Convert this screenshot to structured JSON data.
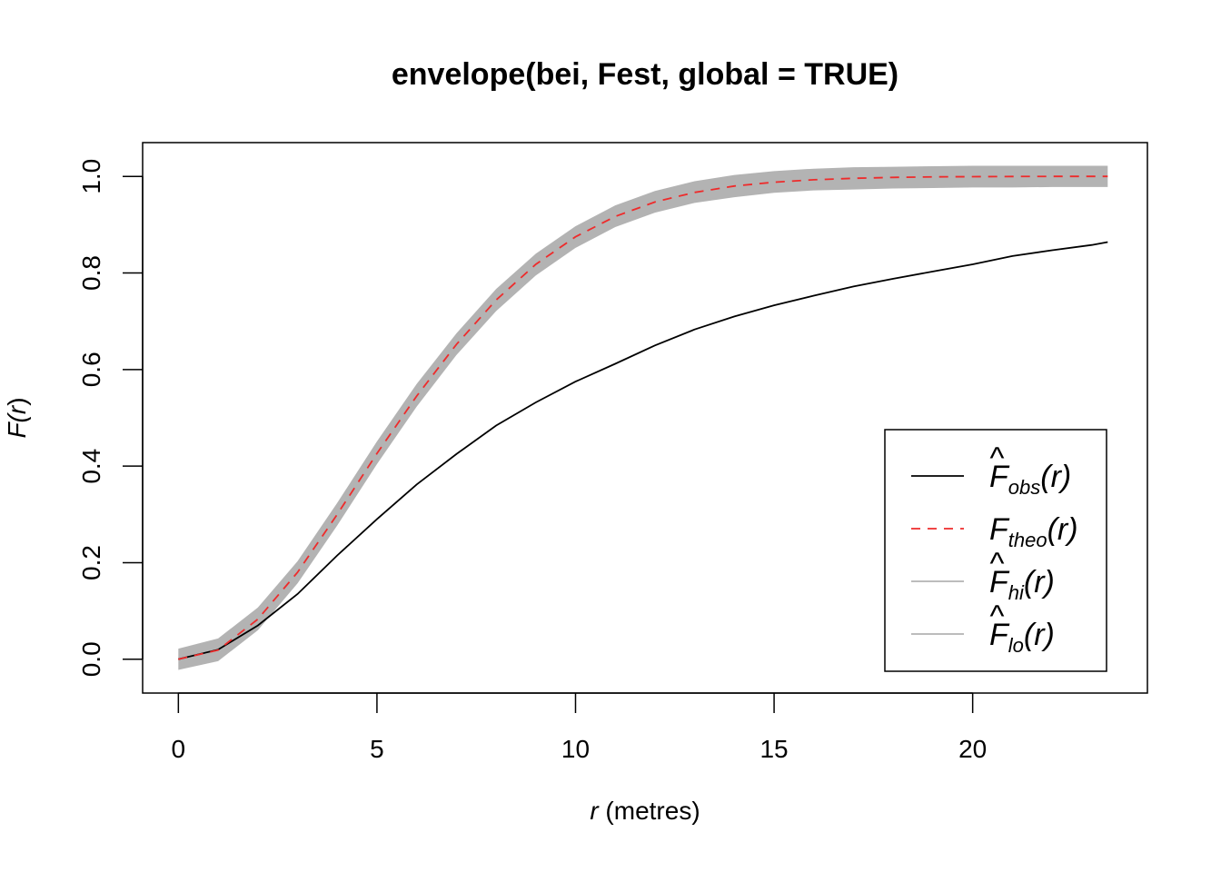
{
  "chart_data": {
    "type": "line",
    "title": "envelope(bei, Fest, global = TRUE)",
    "xlabel": {
      "italic": "r",
      "rest": " (metres)"
    },
    "ylabel": {
      "prefix": "F(",
      "italic": "r",
      "suffix": ")"
    },
    "xlim": [
      -0.9,
      24.4
    ],
    "ylim": [
      -0.07,
      1.07
    ],
    "x_ticks": [
      "0",
      "5",
      "10",
      "15",
      "20"
    ],
    "x_tick_values": [
      0,
      5,
      10,
      15,
      20
    ],
    "y_ticks": [
      "0.0",
      "0.2",
      "0.4",
      "0.6",
      "0.8",
      "1.0"
    ],
    "y_tick_values": [
      0,
      0.2,
      0.4,
      0.6,
      0.8,
      1.0
    ],
    "x": [
      0,
      1,
      2,
      3,
      4,
      5,
      6,
      7,
      8,
      9,
      10,
      11,
      12,
      13,
      14,
      15,
      16,
      17,
      18,
      19,
      20,
      21,
      22,
      23,
      23.4
    ],
    "series": [
      {
        "key": "obs",
        "legend": {
          "prefix": "F",
          "hat": "^",
          "sub": "obs",
          "suffix": "(r)"
        },
        "color": "#000000",
        "style": "solid",
        "values": [
          0.0,
          0.02,
          0.07,
          0.135,
          0.215,
          0.29,
          0.362,
          0.425,
          0.484,
          0.532,
          0.575,
          0.612,
          0.65,
          0.683,
          0.71,
          0.733,
          0.753,
          0.772,
          0.788,
          0.803,
          0.818,
          0.835,
          0.847,
          0.858,
          0.864
        ]
      },
      {
        "key": "theo",
        "legend": {
          "prefix": "F",
          "hat": "",
          "sub": "theo",
          "suffix": "(r)"
        },
        "color": "#ee2b2b",
        "style": "dashed",
        "values": [
          0.0,
          0.019,
          0.083,
          0.18,
          0.3,
          0.426,
          0.545,
          0.652,
          0.744,
          0.818,
          0.875,
          0.917,
          0.947,
          0.967,
          0.98,
          0.988,
          0.993,
          0.996,
          0.998,
          0.999,
          0.9995,
          0.9998,
          1.0,
          1.0,
          1.0
        ]
      },
      {
        "key": "hi",
        "legend": {
          "prefix": "F",
          "hat": "^",
          "sub": "hi",
          "suffix": "(r)"
        },
        "color": "#b3b3b3",
        "style": "band-upper",
        "values": [
          0.022,
          0.043,
          0.107,
          0.203,
          0.324,
          0.451,
          0.57,
          0.675,
          0.767,
          0.84,
          0.897,
          0.94,
          0.97,
          0.99,
          1.003,
          1.011,
          1.016,
          1.019,
          1.02,
          1.021,
          1.022,
          1.022,
          1.022,
          1.022,
          1.022
        ]
      },
      {
        "key": "lo",
        "legend": {
          "prefix": "F",
          "hat": "^",
          "sub": "lo",
          "suffix": "(r)"
        },
        "color": "#b3b3b3",
        "style": "band-lower",
        "values": [
          -0.022,
          -0.004,
          0.06,
          0.157,
          0.277,
          0.404,
          0.523,
          0.63,
          0.721,
          0.795,
          0.852,
          0.895,
          0.925,
          0.945,
          0.957,
          0.966,
          0.971,
          0.973,
          0.975,
          0.976,
          0.977,
          0.977,
          0.978,
          0.978,
          0.978
        ]
      }
    ],
    "legend_position": "bottom-right",
    "grid": false
  }
}
